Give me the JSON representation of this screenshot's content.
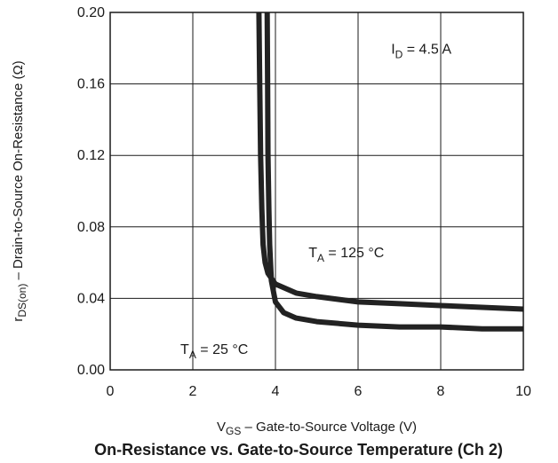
{
  "chart_data": {
    "type": "line",
    "title": "On-Resistance vs. Gate-to-Source Temperature (Ch 2)",
    "xlabel": {
      "prefix": "V",
      "sub": "GS",
      "rest": " – Gate-to-Source Voltage (V)"
    },
    "ylabel": {
      "prefix": "r",
      "sub": "DS(on)",
      "rest": " – Drain-to-Source On-Resistance (Ω)"
    },
    "xlim": [
      0,
      10
    ],
    "ylim": [
      0,
      0.2
    ],
    "x_ticks": [
      0,
      2,
      4,
      6,
      8,
      10
    ],
    "x_tick_labels": [
      "0",
      "2",
      "4",
      "6",
      "8",
      "10"
    ],
    "y_ticks": [
      0,
      0.04,
      0.08,
      0.12,
      0.16,
      0.2
    ],
    "y_tick_labels": [
      "0.00",
      "0.04",
      "0.08",
      "0.12",
      "0.16",
      "0.20"
    ],
    "grid": true,
    "series": [
      {
        "values": [
          [
            3.6,
            0.2
          ],
          [
            3.62,
            0.16
          ],
          [
            3.64,
            0.12
          ],
          [
            3.67,
            0.09
          ],
          [
            3.7,
            0.07
          ],
          [
            3.75,
            0.06
          ],
          [
            3.82,
            0.054
          ],
          [
            4.0,
            0.048
          ],
          [
            4.5,
            0.043
          ],
          [
            5.0,
            0.041
          ],
          [
            6.0,
            0.038
          ],
          [
            7.0,
            0.037
          ],
          [
            8.0,
            0.036
          ],
          [
            9.0,
            0.035
          ],
          [
            10.0,
            0.034
          ]
        ]
      },
      {
        "values": [
          [
            3.8,
            0.2
          ],
          [
            3.81,
            0.16
          ],
          [
            3.82,
            0.12
          ],
          [
            3.84,
            0.09
          ],
          [
            3.86,
            0.07
          ],
          [
            3.9,
            0.05
          ],
          [
            4.0,
            0.038
          ],
          [
            4.2,
            0.032
          ],
          [
            4.5,
            0.029
          ],
          [
            5.0,
            0.027
          ],
          [
            6.0,
            0.025
          ],
          [
            7.0,
            0.024
          ],
          [
            8.0,
            0.024
          ],
          [
            9.0,
            0.023
          ],
          [
            10.0,
            0.023
          ]
        ]
      }
    ],
    "annotations": [
      {
        "prefix": "I",
        "sub": "D",
        "rest": " = 4.5 A",
        "x": 6.8,
        "y": 0.18
      },
      {
        "prefix": "T",
        "sub": "A",
        "rest": " = 125 °C",
        "x": 4.8,
        "y": 0.066
      },
      {
        "prefix": "T",
        "sub": "A",
        "rest": " = 25 °C",
        "x": 1.7,
        "y": 0.012
      }
    ],
    "colors": {
      "series": "#222222",
      "grid": "#1a1a1a",
      "text": "#1a1a1a"
    }
  }
}
